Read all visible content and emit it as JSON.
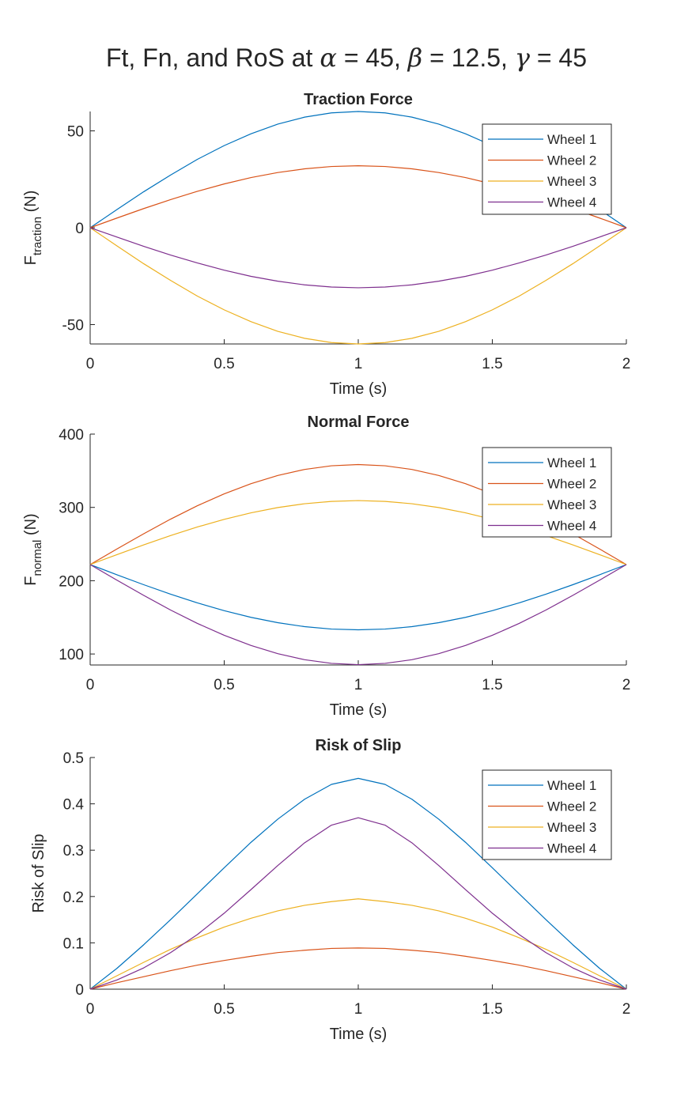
{
  "figure": {
    "title_prefix": "Ft, Fn, and RoS at ",
    "alpha_sym": "α",
    "alpha_val": " = 45, ",
    "beta_sym": "β",
    "beta_val": " = 12.5, ",
    "gamma_sym": "γ",
    "gamma_val": " = 45"
  },
  "colors": {
    "Wheel 1": "#0072BD",
    "Wheel 2": "#D95319",
    "Wheel 3": "#EDB120",
    "Wheel 4": "#7E2F8E",
    "axes": "#262626",
    "background": "#ffffff"
  },
  "chart_data": [
    {
      "type": "line",
      "title": "Traction Force",
      "xlabel": "Time (s)",
      "ylabel_main": "F",
      "ylabel_sub": "traction",
      "ylabel_unit": " (N)",
      "xlim": [
        0,
        2
      ],
      "ylim": [
        -60,
        60
      ],
      "xticks": [
        0,
        0.5,
        1,
        1.5,
        2
      ],
      "xtick_labels": [
        "0",
        "0.5",
        "1",
        "1.5",
        "2"
      ],
      "yticks": [
        -50,
        0,
        50
      ],
      "ytick_labels": [
        "-50",
        "0",
        "50"
      ],
      "grid": false,
      "legend_position": "top-right",
      "x": [
        0,
        0.1,
        0.2,
        0.3,
        0.4,
        0.5,
        0.6,
        0.7,
        0.8,
        0.9,
        1.0,
        1.1,
        1.2,
        1.3,
        1.4,
        1.5,
        1.6,
        1.7,
        1.8,
        1.9,
        2.0
      ],
      "series": [
        {
          "name": "Wheel 1",
          "values": [
            0,
            9.4,
            18.6,
            27.2,
            35.3,
            42.4,
            48.5,
            53.5,
            57.1,
            59.3,
            60.0,
            59.3,
            57.1,
            53.5,
            48.5,
            42.4,
            35.3,
            27.2,
            18.6,
            9.4,
            0
          ]
        },
        {
          "name": "Wheel 2",
          "values": [
            0,
            5.0,
            9.9,
            14.5,
            18.8,
            22.6,
            25.9,
            28.5,
            30.4,
            31.6,
            32.0,
            31.6,
            30.4,
            28.5,
            25.9,
            22.6,
            18.8,
            14.5,
            9.9,
            5.0,
            0
          ]
        },
        {
          "name": "Wheel 3",
          "values": [
            0,
            -9.4,
            -18.6,
            -27.2,
            -35.3,
            -42.4,
            -48.5,
            -53.5,
            -57.1,
            -59.3,
            -60.0,
            -59.3,
            -57.1,
            -53.5,
            -48.5,
            -42.4,
            -35.3,
            -27.2,
            -18.6,
            -9.4,
            0
          ]
        },
        {
          "name": "Wheel 4",
          "values": [
            0,
            -4.8,
            -9.6,
            -14.1,
            -18.2,
            -21.9,
            -25.1,
            -27.6,
            -29.5,
            -30.6,
            -31.0,
            -30.6,
            -29.5,
            -27.6,
            -25.1,
            -21.9,
            -18.2,
            -14.1,
            -9.6,
            -4.8,
            0
          ]
        }
      ]
    },
    {
      "type": "line",
      "title": "Normal Force",
      "xlabel": "Time (s)",
      "ylabel_main": "F",
      "ylabel_sub": "normal",
      "ylabel_unit": " (N)",
      "xlim": [
        0,
        2
      ],
      "ylim": [
        85,
        400
      ],
      "xticks": [
        0,
        0.5,
        1,
        1.5,
        2
      ],
      "xtick_labels": [
        "0",
        "0.5",
        "1",
        "1.5",
        "2"
      ],
      "yticks": [
        100,
        200,
        300,
        400
      ],
      "ytick_labels": [
        "100",
        "200",
        "300",
        "400"
      ],
      "grid": false,
      "legend_position": "top-right",
      "x": [
        0,
        0.1,
        0.2,
        0.3,
        0.4,
        0.5,
        0.6,
        0.7,
        0.8,
        0.9,
        1.0,
        1.1,
        1.2,
        1.3,
        1.4,
        1.5,
        1.6,
        1.7,
        1.8,
        1.9,
        2.0
      ],
      "series": [
        {
          "name": "Wheel 1",
          "values": [
            222,
            208.1,
            194.5,
            181.6,
            169.7,
            159.1,
            150.0,
            142.7,
            137.3,
            134.0,
            133,
            134.0,
            137.3,
            142.7,
            150.0,
            159.1,
            169.7,
            181.6,
            194.5,
            208.1,
            222
          ]
        },
        {
          "name": "Wheel 2",
          "values": [
            222,
            243.3,
            264.1,
            284.0,
            302.3,
            318.5,
            332.4,
            343.6,
            351.8,
            356.8,
            358.5,
            356.8,
            351.8,
            343.6,
            332.4,
            318.5,
            302.3,
            284.0,
            264.1,
            243.3,
            222
          ]
        },
        {
          "name": "Wheel 3",
          "values": [
            222,
            235.6,
            248.9,
            261.6,
            273.3,
            283.7,
            292.6,
            299.8,
            305.0,
            308.2,
            309.3,
            308.2,
            305.0,
            299.8,
            292.6,
            283.7,
            273.3,
            261.6,
            248.9,
            235.6,
            222
          ]
        },
        {
          "name": "Wheel 4",
          "values": [
            222,
            200.7,
            179.9,
            160.0,
            141.7,
            125.5,
            111.6,
            100.4,
            92.2,
            87.2,
            85.5,
            87.2,
            92.2,
            100.4,
            111.6,
            125.5,
            141.7,
            160.0,
            179.9,
            200.7,
            222
          ]
        }
      ]
    },
    {
      "type": "line",
      "title": "Risk of Slip",
      "xlabel": "Time (s)",
      "ylabel": "Risk of Slip",
      "xlim": [
        0,
        2
      ],
      "ylim": [
        0,
        0.5
      ],
      "xticks": [
        0,
        0.5,
        1,
        1.5,
        2
      ],
      "xtick_labels": [
        "0",
        "0.5",
        "1",
        "1.5",
        "2"
      ],
      "yticks": [
        0,
        0.1,
        0.2,
        0.3,
        0.4,
        0.5
      ],
      "ytick_labels": [
        "0",
        "0.1",
        "0.2",
        "0.3",
        "0.4",
        "0.5"
      ],
      "grid": false,
      "legend_position": "top-right",
      "x": [
        0,
        0.1,
        0.2,
        0.3,
        0.4,
        0.5,
        0.6,
        0.7,
        0.8,
        0.9,
        1.0,
        1.1,
        1.2,
        1.3,
        1.4,
        1.5,
        1.6,
        1.7,
        1.8,
        1.9,
        2.0
      ],
      "series": [
        {
          "name": "Wheel 1",
          "values": [
            0,
            0.045,
            0.096,
            0.15,
            0.206,
            0.262,
            0.317,
            0.367,
            0.41,
            0.442,
            0.455,
            0.442,
            0.41,
            0.367,
            0.317,
            0.262,
            0.206,
            0.15,
            0.096,
            0.045,
            0
          ]
        },
        {
          "name": "Wheel 2",
          "values": [
            0,
            0.014,
            0.027,
            0.04,
            0.052,
            0.062,
            0.071,
            0.079,
            0.084,
            0.088,
            0.089,
            0.088,
            0.084,
            0.079,
            0.071,
            0.062,
            0.052,
            0.04,
            0.027,
            0.014,
            0
          ]
        },
        {
          "name": "Wheel 3",
          "values": [
            0,
            0.029,
            0.058,
            0.086,
            0.111,
            0.134,
            0.153,
            0.169,
            0.181,
            0.189,
            0.195,
            0.189,
            0.181,
            0.169,
            0.153,
            0.134,
            0.111,
            0.086,
            0.058,
            0.029,
            0
          ]
        },
        {
          "name": "Wheel 4",
          "values": [
            0,
            0.02,
            0.046,
            0.079,
            0.118,
            0.164,
            0.215,
            0.267,
            0.316,
            0.354,
            0.37,
            0.354,
            0.316,
            0.267,
            0.215,
            0.164,
            0.118,
            0.079,
            0.046,
            0.02,
            0
          ]
        }
      ]
    }
  ]
}
